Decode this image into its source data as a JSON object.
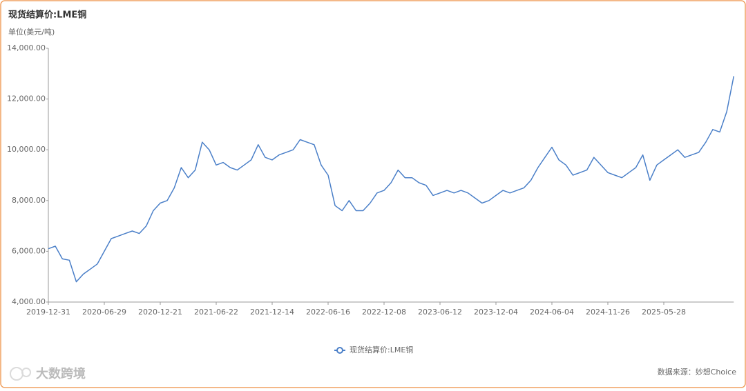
{
  "chart_data": {
    "type": "line",
    "title": "现货结算价:LME铜",
    "y_label": "单位(美元/吨)",
    "source": "数据来源：妙想Choice",
    "watermark": "大数跨境",
    "categories": [
      "2019-12-31",
      null,
      null,
      null,
      null,
      null,
      null,
      null,
      "2020-06-29",
      null,
      null,
      null,
      null,
      null,
      null,
      null,
      "2020-12-21",
      null,
      null,
      null,
      null,
      null,
      null,
      null,
      "2021-06-22",
      null,
      null,
      null,
      null,
      null,
      null,
      null,
      "2021-12-14",
      null,
      null,
      null,
      null,
      null,
      null,
      null,
      "2022-06-16",
      null,
      null,
      null,
      null,
      null,
      null,
      null,
      "2022-12-08",
      null,
      null,
      null,
      null,
      null,
      null,
      null,
      "2023-06-12",
      null,
      null,
      null,
      null,
      null,
      null,
      null,
      "2023-12-04",
      null,
      null,
      null,
      null,
      null,
      null,
      null,
      "2024-06-04",
      null,
      null,
      null,
      null,
      null,
      null,
      null,
      "2024-11-26",
      null,
      null,
      null,
      null,
      null,
      null,
      null,
      "2025-05-28",
      null,
      null,
      null,
      null,
      null,
      null,
      null,
      null,
      null,
      null
    ],
    "series": [
      {
        "name": "现货结算价:LME铜",
        "color": "#4a7fc8",
        "values": [
          6100,
          6200,
          5700,
          5650,
          4800,
          5100,
          5300,
          5500,
          6000,
          6500,
          6600,
          6700,
          6800,
          6700,
          7000,
          7600,
          7900,
          8000,
          8500,
          9300,
          8900,
          9200,
          10300,
          10000,
          9400,
          9500,
          9300,
          9200,
          9400,
          9600,
          10200,
          9700,
          9600,
          9800,
          9900,
          10000,
          10400,
          10300,
          10200,
          9400,
          9000,
          7800,
          7600,
          8000,
          7600,
          7600,
          7900,
          8300,
          8400,
          8700,
          9200,
          8900,
          8900,
          8700,
          8600,
          8200,
          8300,
          8400,
          8300,
          8400,
          8300,
          8100,
          7900,
          8000,
          8200,
          8400,
          8300,
          8400,
          8500,
          8800,
          9300,
          9700,
          10100,
          9600,
          9400,
          9000,
          9100,
          9200,
          9700,
          9400,
          9100,
          9000,
          8900,
          9100,
          9300,
          9800,
          8800,
          9400,
          9600,
          9800,
          10000,
          9700,
          9800,
          9900,
          10300,
          10800,
          10700,
          11500,
          12900
        ]
      }
    ],
    "ylim": [
      4000,
      14000
    ],
    "yticks": [
      {
        "value": 4000,
        "label": "4,000.00"
      },
      {
        "value": 6000,
        "label": "6,000.00"
      },
      {
        "value": 8000,
        "label": "8,000.00"
      },
      {
        "value": 10000,
        "label": "10,000.00"
      },
      {
        "value": 12000,
        "label": "12,000.00"
      },
      {
        "value": 14000,
        "label": "14,000.00"
      }
    ],
    "grid": false
  }
}
